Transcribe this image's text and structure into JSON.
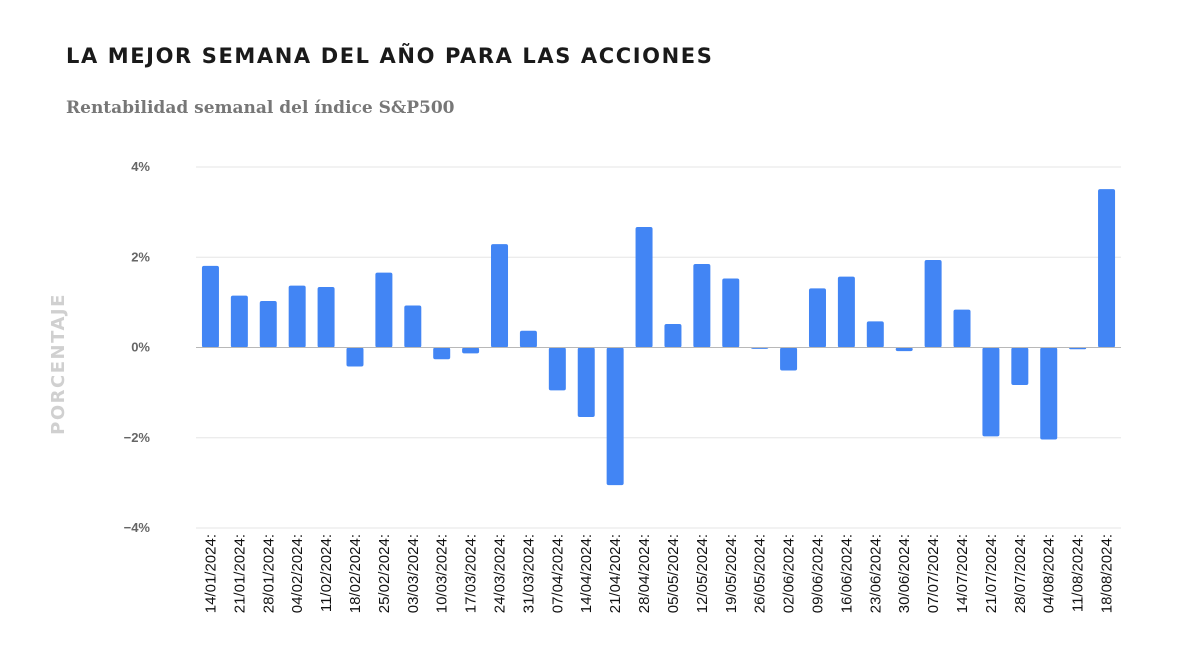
{
  "title": "LA MEJOR SEMANA DEL AÑO PARA LAS ACCIONES",
  "subtitle": "Rentabilidad semanal del índice S&P500",
  "colors": {
    "bar": "#4285f4",
    "axis_label": "#d0d0d0",
    "tick_text": "#666666",
    "grid": "#e6e6e6",
    "zero_line": "#b8b8b8"
  },
  "chart_data": {
    "type": "bar",
    "ylabel": "PORCENTAJE",
    "ylim": [
      -4,
      4
    ],
    "yticks": [
      4,
      2,
      0,
      -2,
      -4
    ],
    "ytick_labels": [
      "4%",
      "2%",
      "0%",
      "−2%",
      "−4%"
    ],
    "grid": true,
    "categories": [
      "14/01/2024:",
      "21/01/2024:",
      "28/01/2024:",
      "04/02/2024:",
      "11/02/2024:",
      "18/02/2024:",
      "25/02/2024:",
      "03/03/2024:",
      "10/03/2024:",
      "17/03/2024:",
      "24/03/2024:",
      "31/03/2024:",
      "07/04/2024:",
      "14/04/2024:",
      "21/04/2024:",
      "28/04/2024:",
      "05/05/2024:",
      "12/05/2024:",
      "19/05/2024:",
      "26/05/2024:",
      "02/06/2024:",
      "09/06/2024:",
      "16/06/2024:",
      "23/06/2024:",
      "30/06/2024:",
      "07/07/2024:",
      "14/07/2024:",
      "21/07/2024:",
      "28/07/2024:",
      "04/08/2024:",
      "11/08/2024:",
      "18/08/2024:"
    ],
    "values": [
      1.81,
      1.15,
      1.03,
      1.37,
      1.34,
      -0.42,
      1.66,
      0.93,
      -0.26,
      -0.13,
      2.29,
      0.37,
      -0.95,
      -1.54,
      -3.05,
      2.67,
      0.52,
      1.85,
      1.53,
      -0.03,
      -0.51,
      1.31,
      1.57,
      0.58,
      -0.08,
      1.94,
      0.84,
      -1.97,
      -0.83,
      -2.04,
      -0.04,
      3.51
    ]
  }
}
